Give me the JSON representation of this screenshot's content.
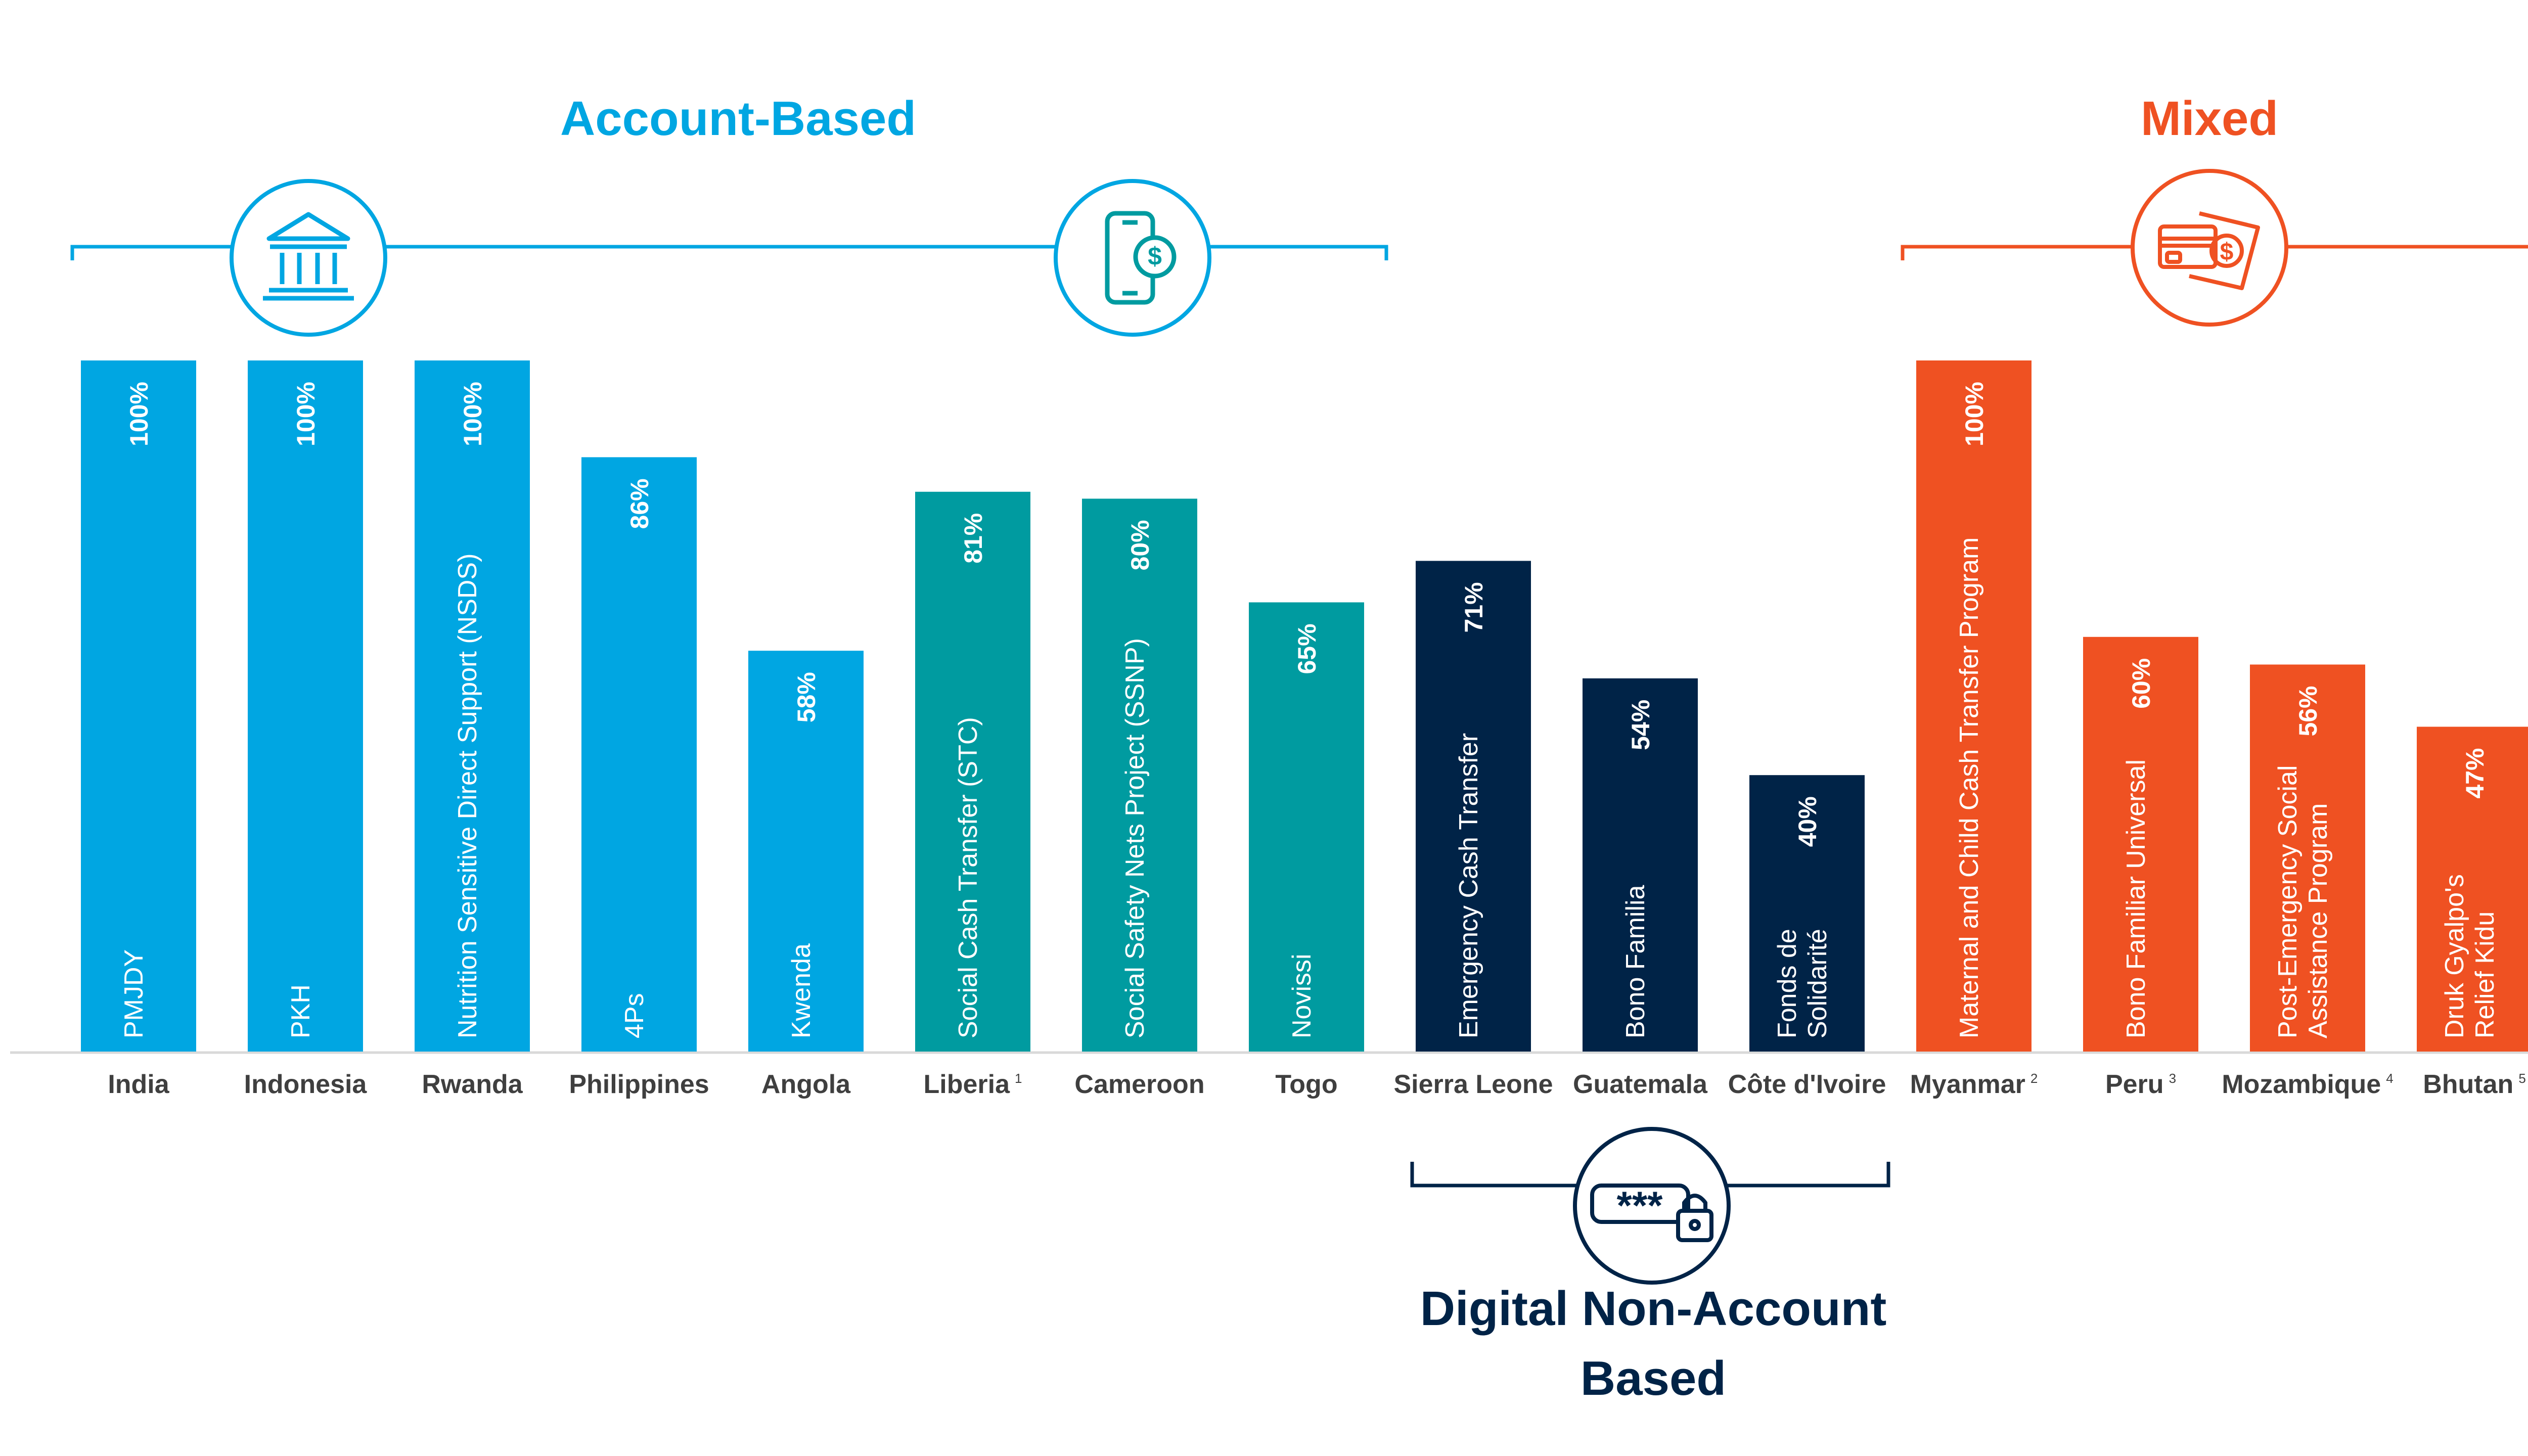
{
  "colors": {
    "account_based": "#00A6E2",
    "account_based_teal": "#009BA0",
    "digital_non_account": "#002347",
    "mixed": "#EF5122",
    "axis": "#D9D9D9",
    "country_text": "#3F3F3F"
  },
  "groups": {
    "account_based": {
      "title": "Account-Based",
      "icons": [
        "bank-icon",
        "mobile-money-icon"
      ]
    },
    "mixed": {
      "title": "Mixed",
      "icons": [
        "card-cash-icon"
      ]
    },
    "digital_non_account": {
      "title": "Digital Non-Account Based",
      "icons": [
        "password-lock-icon"
      ]
    }
  },
  "chart_data": {
    "type": "bar",
    "ylim": [
      0,
      100
    ],
    "grid": false,
    "categories": [
      "India",
      "Indonesia",
      "Rwanda",
      "Philippines",
      "Angola",
      "Liberia",
      "Cameroon",
      "Togo",
      "Sierra Leone",
      "Guatemala",
      "Côte d'Ivoire",
      "Myanmar",
      "Peru",
      "Mozambique",
      "Bhutan"
    ],
    "footnotes": [
      "",
      "",
      "",
      "",
      "",
      "1",
      "",
      "",
      "",
      "",
      "",
      "2",
      "3",
      "4",
      "5"
    ],
    "values": [
      100,
      100,
      100,
      86,
      58,
      81,
      80,
      65,
      71,
      54,
      40,
      100,
      60,
      56,
      47
    ],
    "value_labels": [
      "100%",
      "100%",
      "100%",
      "86%",
      "58%",
      "81%",
      "80%",
      "65%",
      "71%",
      "54%",
      "40%",
      "100%",
      "60%",
      "56%",
      "47%"
    ],
    "programs": [
      [
        "PMJDY"
      ],
      [
        "PKH"
      ],
      [
        "Nutrition Sensitive Direct Support (NSDS)"
      ],
      [
        "4Ps"
      ],
      [
        "Kwenda"
      ],
      [
        "Social Cash Transfer (STC)"
      ],
      [
        "Social Safety Nets Project (SSNP)"
      ],
      [
        "Novissi"
      ],
      [
        "Emergency Cash Transfer"
      ],
      [
        "Bono Familia"
      ],
      [
        "Fonds de",
        "Solidarité"
      ],
      [
        "Maternal and Child Cash Transfer Program"
      ],
      [
        "Bono Familiar Universal"
      ],
      [
        "Post-Emergency Social",
        "Assistance Program"
      ],
      [
        "Druk Gyalpo's",
        "Relief Kidu"
      ]
    ],
    "group": [
      "account_based",
      "account_based",
      "account_based",
      "account_based",
      "account_based",
      "account_based_teal",
      "account_based_teal",
      "account_based_teal",
      "digital_non_account",
      "digital_non_account",
      "digital_non_account",
      "mixed",
      "mixed",
      "mixed",
      "mixed"
    ]
  }
}
